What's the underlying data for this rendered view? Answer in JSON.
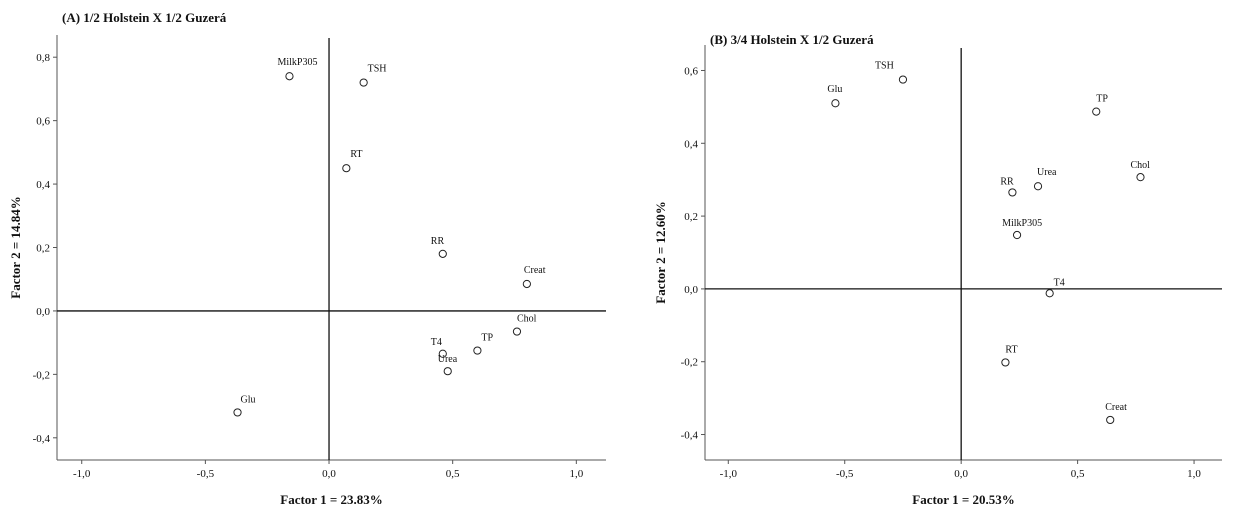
{
  "chart_data": [
    {
      "type": "scatter",
      "title": "(A) 1/2 Holstein X 1/2 Guzerá",
      "xlabel": "Factor 1 = 23.83%",
      "ylabel": "Factor 2 = 14.84%",
      "xlim": [
        -1.1,
        1.12
      ],
      "ylim": [
        -0.47,
        0.87
      ],
      "xticks": [
        -1.0,
        -0.5,
        0.0,
        0.5,
        1.0
      ],
      "yticks": [
        -0.4,
        -0.2,
        0.0,
        0.2,
        0.4,
        0.6,
        0.8
      ],
      "x_tick_labels": [
        "-1,0",
        "-0,5",
        "0,0",
        "0,5",
        "1,0"
      ],
      "y_tick_labels": [
        "-0,4",
        "-0,2",
        "0,0",
        "0,2",
        "0,4",
        "0,6",
        "0,8"
      ],
      "grid": false,
      "points": [
        {
          "label": "MilkP305",
          "x": -0.16,
          "y": 0.74
        },
        {
          "label": "TSH",
          "x": 0.14,
          "y": 0.72
        },
        {
          "label": "RT",
          "x": 0.07,
          "y": 0.45
        },
        {
          "label": "RR",
          "x": 0.46,
          "y": 0.18
        },
        {
          "label": "Creat",
          "x": 0.8,
          "y": 0.085
        },
        {
          "label": "Chol",
          "x": 0.76,
          "y": -0.065
        },
        {
          "label": "TP",
          "x": 0.6,
          "y": -0.125
        },
        {
          "label": "T4",
          "x": 0.46,
          "y": -0.135
        },
        {
          "label": "Urea",
          "x": 0.48,
          "y": -0.19
        },
        {
          "label": "Glu",
          "x": -0.37,
          "y": -0.32
        }
      ]
    },
    {
      "type": "scatter",
      "title": "(B) 3/4 Holstein X 1/2 Guzerá",
      "xlabel": "Factor 1 = 20.53%",
      "ylabel": "Factor 2 = 12.60%",
      "xlim": [
        -1.1,
        1.12
      ],
      "ylim": [
        -0.47,
        0.67
      ],
      "xticks": [
        -1.0,
        -0.5,
        0.0,
        0.5,
        1.0
      ],
      "yticks": [
        -0.4,
        -0.2,
        0.0,
        0.2,
        0.4,
        0.6
      ],
      "x_tick_labels": [
        "-1,0",
        "-0,5",
        "0,0",
        "0,5",
        "1,0"
      ],
      "y_tick_labels": [
        "-0,4",
        "-0,2",
        "0,0",
        "0,2",
        "0,4",
        "0,6"
      ],
      "grid": false,
      "points": [
        {
          "label": "TSH",
          "x": -0.25,
          "y": 0.575
        },
        {
          "label": "Glu",
          "x": -0.54,
          "y": 0.51
        },
        {
          "label": "TP",
          "x": 0.58,
          "y": 0.487
        },
        {
          "label": "Chol",
          "x": 0.77,
          "y": 0.307
        },
        {
          "label": "Urea",
          "x": 0.33,
          "y": 0.282
        },
        {
          "label": "RR",
          "x": 0.22,
          "y": 0.265
        },
        {
          "label": "MilkP305",
          "x": 0.24,
          "y": 0.148
        },
        {
          "label": "T4",
          "x": 0.38,
          "y": -0.012
        },
        {
          "label": "RT",
          "x": 0.19,
          "y": -0.202
        },
        {
          "label": "Creat",
          "x": 0.64,
          "y": -0.36
        }
      ]
    }
  ]
}
